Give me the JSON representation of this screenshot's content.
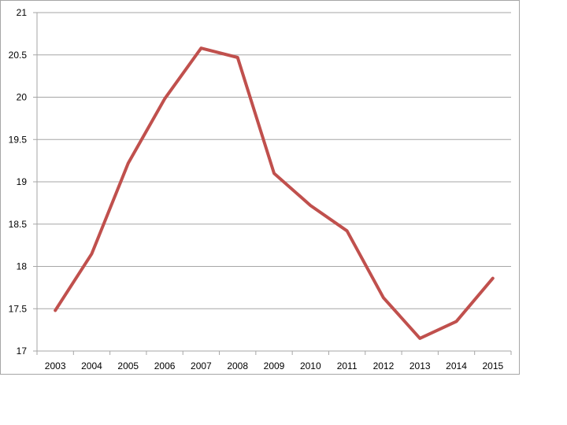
{
  "chart_data": {
    "type": "line",
    "title": "",
    "xlabel": "",
    "ylabel": "",
    "categories": [
      "2003",
      "2004",
      "2005",
      "2006",
      "2007",
      "2008",
      "2009",
      "2010",
      "2011",
      "2012",
      "2013",
      "2014",
      "2015"
    ],
    "series": [
      {
        "values": [
          17.48,
          18.15,
          19.22,
          19.98,
          20.58,
          20.47,
          19.1,
          18.72,
          18.42,
          17.63,
          17.15,
          17.35,
          17.86
        ],
        "color": "#c0504d"
      }
    ],
    "ylim": [
      17,
      21
    ],
    "yticks": [
      "17",
      "17.5",
      "18",
      "18.5",
      "19",
      "19.5",
      "20",
      "20.5",
      "21"
    ],
    "grid": true,
    "legend": "none"
  }
}
